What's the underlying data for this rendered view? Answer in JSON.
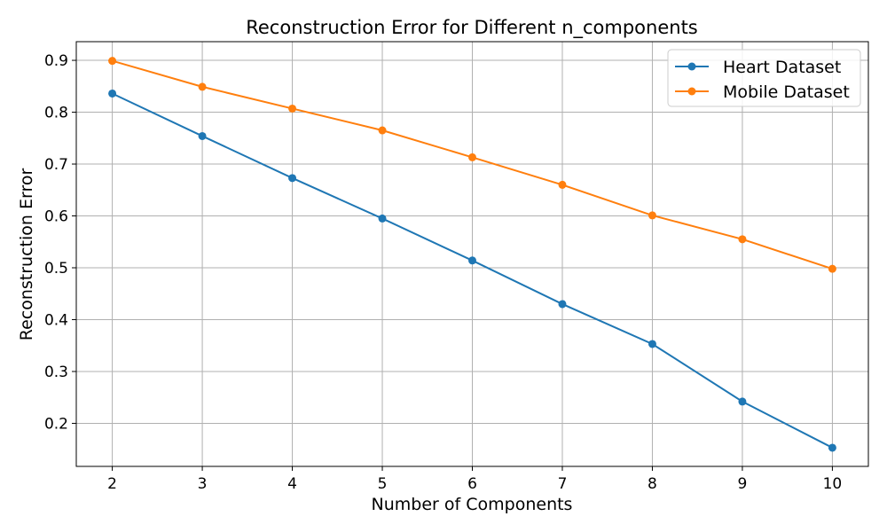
{
  "chart_data": {
    "type": "line",
    "title": "Reconstruction Error for Different n_components",
    "xlabel": "Number of Components",
    "ylabel": "Reconstruction Error",
    "x": [
      2,
      3,
      4,
      5,
      6,
      7,
      8,
      9,
      10
    ],
    "xticks": [
      "2",
      "3",
      "4",
      "5",
      "6",
      "7",
      "8",
      "9",
      "10"
    ],
    "yticks": [
      "0.2",
      "0.3",
      "0.4",
      "0.5",
      "0.6",
      "0.7",
      "0.8",
      "0.9"
    ],
    "xlim": [
      1.6,
      10.4
    ],
    "ylim": [
      0.117,
      0.936
    ],
    "grid": true,
    "legend_position": "top-right",
    "series": [
      {
        "name": "Heart Dataset",
        "color": "#1f77b4",
        "values": [
          0.836,
          0.754,
          0.673,
          0.595,
          0.514,
          0.43,
          0.353,
          0.242,
          0.153
        ]
      },
      {
        "name": "Mobile Dataset",
        "color": "#ff7f0e",
        "values": [
          0.899,
          0.849,
          0.807,
          0.765,
          0.713,
          0.66,
          0.601,
          0.555,
          0.498
        ]
      }
    ]
  }
}
